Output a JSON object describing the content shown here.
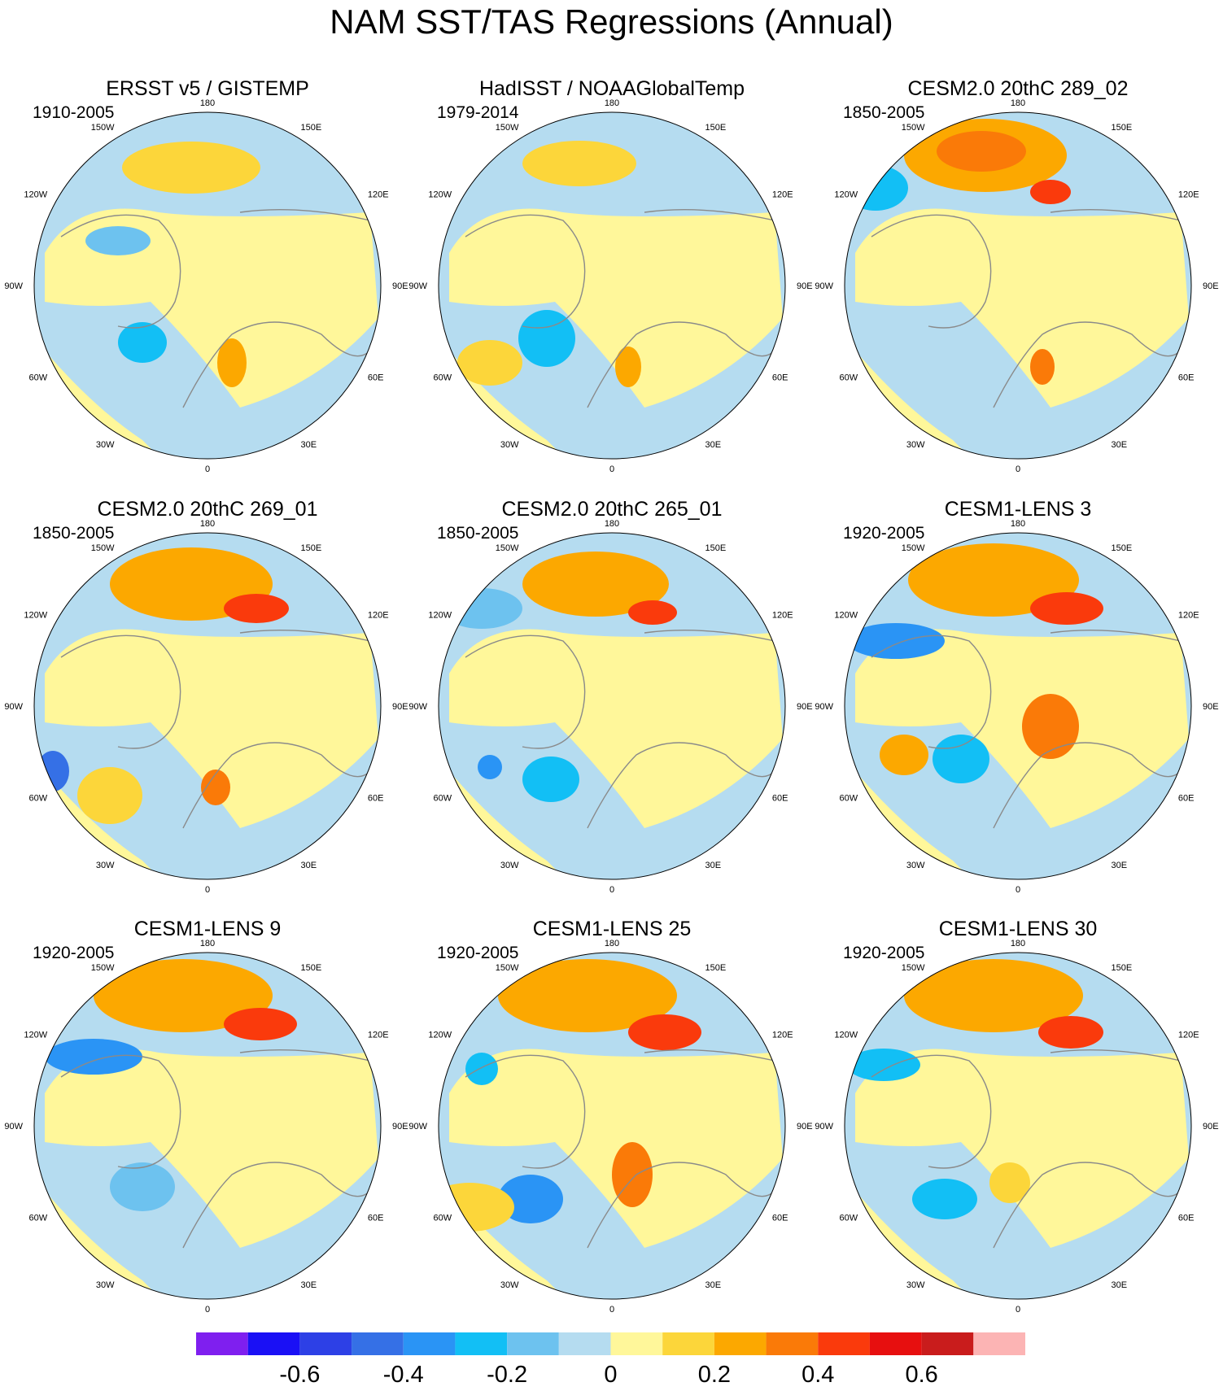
{
  "title": "NAM SST/TAS Regressions (Annual)",
  "lon_labels": [
    "180",
    "150E",
    "120E",
    "90E",
    "60E",
    "30E",
    "0",
    "30W",
    "60W",
    "90W",
    "120W",
    "150W"
  ],
  "colors": {
    "land_outline": "#8a8a8a",
    "map_border": "#000000",
    "missing": "#ffffff"
  },
  "chart_data": {
    "type": "heatmap",
    "projection": "north polar stereographic",
    "panels": [
      {
        "title": "ERSST v5 / GISTEMP",
        "period": "1910-2005"
      },
      {
        "title": "HadISST / NOAAGlobalTemp",
        "period": "1979-2014"
      },
      {
        "title": "CESM2.0 20thC 289_02",
        "period": "1850-2005"
      },
      {
        "title": "CESM2.0 20thC 269_01",
        "period": "1850-2005"
      },
      {
        "title": "CESM2.0 20thC 265_01",
        "period": "1850-2005"
      },
      {
        "title": "CESM1-LENS 3",
        "period": "1920-2005"
      },
      {
        "title": "CESM1-LENS 9",
        "period": "1920-2005"
      },
      {
        "title": "CESM1-LENS 25",
        "period": "1920-2005"
      },
      {
        "title": "CESM1-LENS 30",
        "period": "1920-2005"
      }
    ],
    "colorbar": {
      "levels": [
        -0.7,
        -0.6,
        -0.5,
        -0.4,
        -0.3,
        -0.2,
        -0.1,
        0,
        0.1,
        0.2,
        0.3,
        0.4,
        0.5,
        0.6,
        0.7
      ],
      "colors": [
        "#7f1fef",
        "#1a10f5",
        "#2d40e6",
        "#3570e6",
        "#2a94f5",
        "#12bff5",
        "#6dc2ef",
        "#b5dcf0",
        "#fff79a",
        "#fcd63a",
        "#fca800",
        "#fa7a08",
        "#fa3a0c",
        "#e70f0f",
        "#c91c1c",
        "#fcb4b4"
      ],
      "tick_labels": [
        "-0.6",
        "-0.4",
        "-0.2",
        "0",
        "0.2",
        "0.4",
        "0.6"
      ],
      "tick_values": [
        -0.6,
        -0.4,
        -0.2,
        0,
        0.2,
        0.4,
        0.6
      ]
    }
  }
}
